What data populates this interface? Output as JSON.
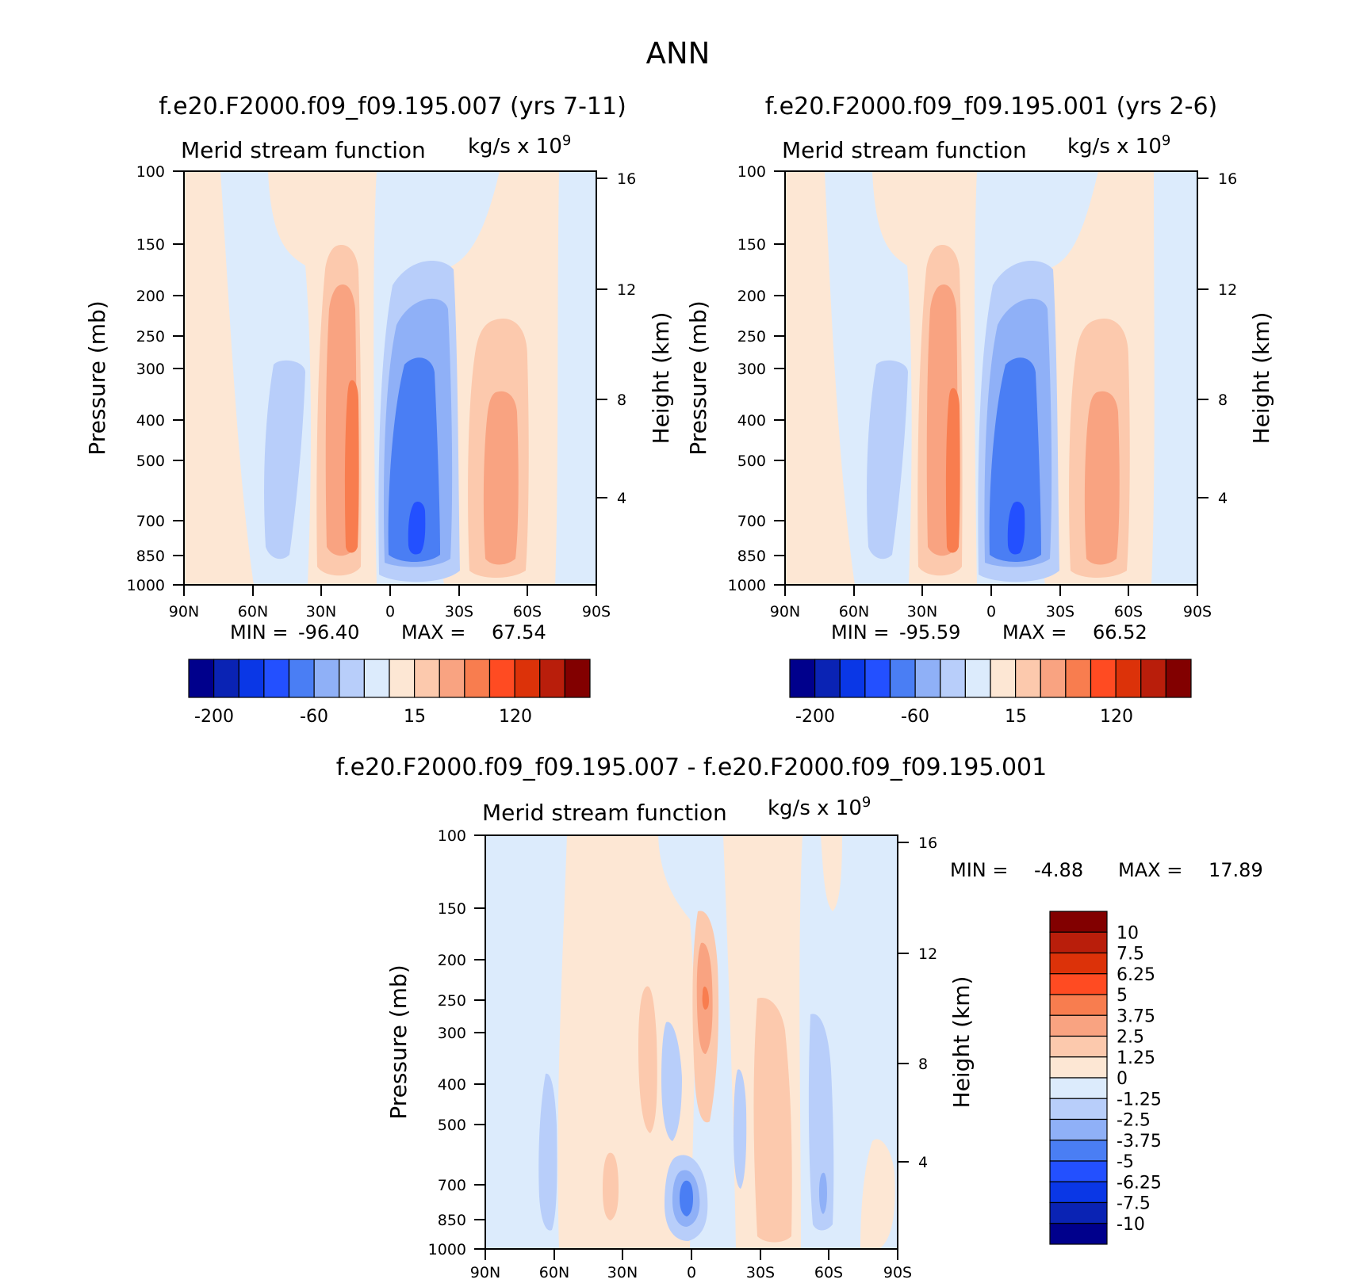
{
  "figure_title": "ANN",
  "colors": {
    "control_palette": [
      "#00008c",
      "#0a23b4",
      "#0a37e6",
      "#2350ff",
      "#4a7ef4",
      "#8fb0f7",
      "#b8cefa",
      "#dcebfc",
      "#fde7d4",
      "#fcc9ad",
      "#f9a381",
      "#f87d4f",
      "#ff4b22",
      "#dc3209",
      "#b91e0b",
      "#820000"
    ],
    "diff_palette": [
      "#00008c",
      "#0a23b4",
      "#0a37e6",
      "#2350ff",
      "#4a7ef4",
      "#8fb0f7",
      "#b8cefa",
      "#dcebfc",
      "#fde7d4",
      "#fcc9ad",
      "#f9a381",
      "#f87d4f",
      "#ff4b22",
      "#dc3209",
      "#b91e0b",
      "#820000"
    ]
  },
  "chart_data": [
    {
      "type": "heatmap",
      "title": "f.e20.F2000.f09_f09.195.007 (yrs 7-11)",
      "subtitle": "Merid stream function",
      "units": "kg/s x 10",
      "units_exp": "9",
      "ylabel": "Pressure (mb)",
      "ylabel_right": "Height (km)",
      "x_ticks": [
        "90N",
        "60N",
        "30N",
        "0",
        "30S",
        "60S",
        "90S"
      ],
      "y_ticks": [
        "100",
        "150",
        "200",
        "250",
        "300",
        "400",
        "500",
        "700",
        "850",
        "1000"
      ],
      "y_right_ticks": [
        "16",
        "12",
        "8",
        "4"
      ],
      "y_scale": "log",
      "min_label": "MIN =",
      "min_value": "-96.40",
      "max_label": "MAX =",
      "max_value": "67.54",
      "colorbar_labels": [
        "-200",
        "-60",
        "15",
        "120"
      ]
    },
    {
      "type": "heatmap",
      "title": "f.e20.F2000.f09_f09.195.001 (yrs 2-6)",
      "subtitle": "Merid stream function",
      "units": "kg/s x 10",
      "units_exp": "9",
      "ylabel": "Pressure (mb)",
      "ylabel_right": "Height (km)",
      "x_ticks": [
        "90N",
        "60N",
        "30N",
        "0",
        "30S",
        "60S",
        "90S"
      ],
      "y_ticks": [
        "100",
        "150",
        "200",
        "250",
        "300",
        "400",
        "500",
        "700",
        "850",
        "1000"
      ],
      "y_right_ticks": [
        "16",
        "12",
        "8",
        "4"
      ],
      "y_scale": "log",
      "min_label": "MIN =",
      "min_value": "-95.59",
      "max_label": "MAX =",
      "max_value": "66.52",
      "colorbar_labels": [
        "-200",
        "-60",
        "15",
        "120"
      ]
    },
    {
      "type": "heatmap",
      "title": "f.e20.F2000.f09_f09.195.007 - f.e20.F2000.f09_f09.195.001",
      "subtitle": "Merid stream function",
      "units": "kg/s x 10",
      "units_exp": "9",
      "ylabel": "Pressure (mb)",
      "ylabel_right": "Height (km)",
      "x_ticks": [
        "90N",
        "60N",
        "30N",
        "0",
        "30S",
        "60S",
        "90S"
      ],
      "y_ticks": [
        "100",
        "150",
        "200",
        "250",
        "300",
        "400",
        "500",
        "700",
        "850",
        "1000"
      ],
      "y_right_ticks": [
        "16",
        "12",
        "8",
        "4"
      ],
      "y_scale": "log",
      "min_label": "MIN =",
      "min_value": "-4.88",
      "max_label": "MAX =",
      "max_value": "17.89",
      "colorbar_labels": [
        "10",
        "7.5",
        "6.25",
        "5",
        "3.75",
        "2.5",
        "1.25",
        "0",
        "-1.25",
        "-2.5",
        "-3.75",
        "-5",
        "-6.25",
        "-7.5",
        "-10"
      ]
    }
  ]
}
